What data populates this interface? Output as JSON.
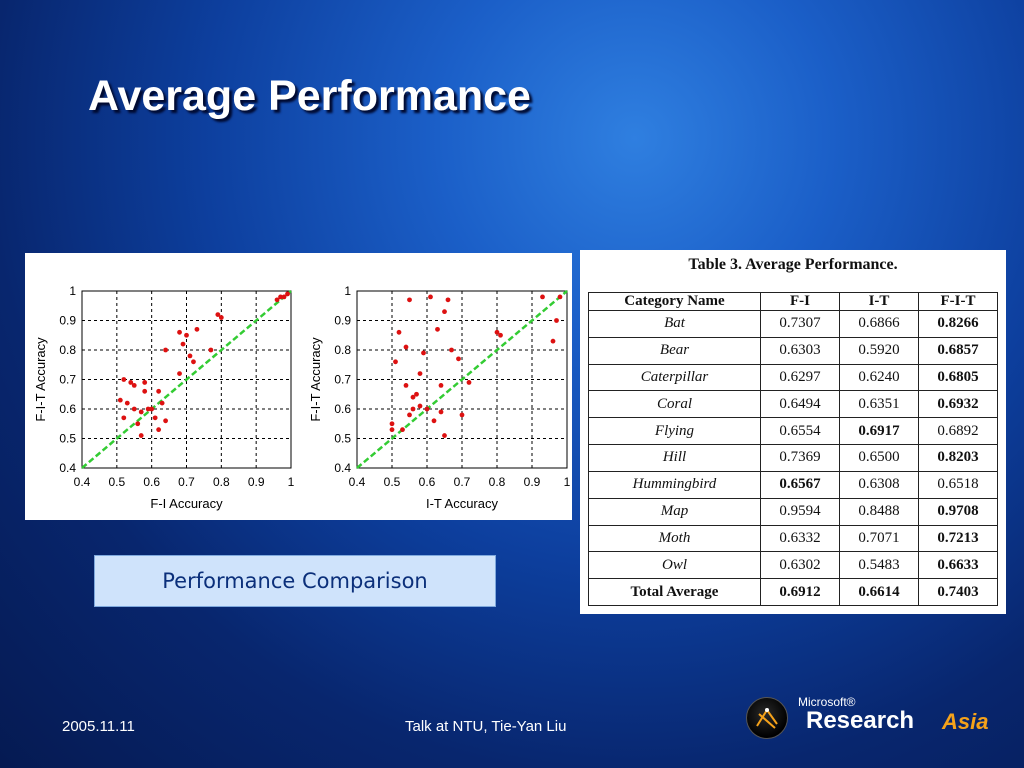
{
  "slide": {
    "title": "Average Performance",
    "caption": "Performance Comparison",
    "footer_date": "2005.11.11",
    "footer_talk": "Talk at NTU, Tie-Yan Liu",
    "logo_microsoft": "Microsoft®",
    "logo_research": "Research",
    "logo_asia": "Asia"
  },
  "chart_data": [
    {
      "type": "scatter",
      "xlabel": "F-I Accuracy",
      "ylabel": "F-I-T Accuracy",
      "xlim": [
        0.4,
        1
      ],
      "ylim": [
        0.4,
        1
      ],
      "xticks": [
        "0.4",
        "0.5",
        "0.6",
        "0.7",
        "0.8",
        "0.9",
        "1"
      ],
      "yticks": [
        "0.4",
        "0.5",
        "0.6",
        "0.7",
        "0.8",
        "0.9",
        "1"
      ],
      "grid": true,
      "diagonal": true,
      "point_color": "#dd1111",
      "diagonal_color": "#33cc33",
      "points": [
        [
          0.51,
          0.63
        ],
        [
          0.52,
          0.7
        ],
        [
          0.52,
          0.57
        ],
        [
          0.53,
          0.62
        ],
        [
          0.54,
          0.69
        ],
        [
          0.55,
          0.68
        ],
        [
          0.55,
          0.6
        ],
        [
          0.56,
          0.55
        ],
        [
          0.57,
          0.59
        ],
        [
          0.57,
          0.51
        ],
        [
          0.58,
          0.66
        ],
        [
          0.58,
          0.69
        ],
        [
          0.59,
          0.6
        ],
        [
          0.6,
          0.6
        ],
        [
          0.61,
          0.57
        ],
        [
          0.62,
          0.53
        ],
        [
          0.62,
          0.66
        ],
        [
          0.63,
          0.62
        ],
        [
          0.64,
          0.56
        ],
        [
          0.64,
          0.8
        ],
        [
          0.68,
          0.72
        ],
        [
          0.68,
          0.86
        ],
        [
          0.69,
          0.82
        ],
        [
          0.7,
          0.85
        ],
        [
          0.71,
          0.78
        ],
        [
          0.72,
          0.76
        ],
        [
          0.73,
          0.87
        ],
        [
          0.77,
          0.8
        ],
        [
          0.79,
          0.92
        ],
        [
          0.8,
          0.91
        ],
        [
          0.96,
          0.97
        ],
        [
          0.97,
          0.98
        ],
        [
          0.98,
          0.98
        ],
        [
          0.99,
          0.99
        ]
      ]
    },
    {
      "type": "scatter",
      "xlabel": "I-T Accuracy",
      "ylabel": "F-I-T Accuracy",
      "xlim": [
        0.4,
        1
      ],
      "ylim": [
        0.4,
        1
      ],
      "xticks": [
        "0.4",
        "0.5",
        "0.6",
        "0.7",
        "0.8",
        "0.9",
        "1"
      ],
      "yticks": [
        "0.4",
        "0.5",
        "0.6",
        "0.7",
        "0.8",
        "0.9",
        "1"
      ],
      "grid": true,
      "diagonal": true,
      "point_color": "#dd1111",
      "diagonal_color": "#33cc33",
      "points": [
        [
          0.5,
          0.53
        ],
        [
          0.5,
          0.55
        ],
        [
          0.51,
          0.76
        ],
        [
          0.52,
          0.86
        ],
        [
          0.53,
          0.53
        ],
        [
          0.54,
          0.68
        ],
        [
          0.54,
          0.81
        ],
        [
          0.55,
          0.97
        ],
        [
          0.55,
          0.58
        ],
        [
          0.56,
          0.64
        ],
        [
          0.56,
          0.6
        ],
        [
          0.57,
          0.65
        ],
        [
          0.58,
          0.72
        ],
        [
          0.58,
          0.61
        ],
        [
          0.59,
          0.79
        ],
        [
          0.6,
          0.6
        ],
        [
          0.61,
          0.98
        ],
        [
          0.62,
          0.56
        ],
        [
          0.63,
          0.87
        ],
        [
          0.64,
          0.59
        ],
        [
          0.64,
          0.68
        ],
        [
          0.65,
          0.93
        ],
        [
          0.65,
          0.51
        ],
        [
          0.66,
          0.97
        ],
        [
          0.67,
          0.8
        ],
        [
          0.69,
          0.77
        ],
        [
          0.7,
          0.58
        ],
        [
          0.72,
          0.69
        ],
        [
          0.8,
          0.86
        ],
        [
          0.81,
          0.85
        ],
        [
          0.93,
          0.98
        ],
        [
          0.96,
          0.83
        ],
        [
          0.97,
          0.9
        ],
        [
          0.98,
          0.98
        ]
      ]
    },
    {
      "type": "table",
      "title": "Table 3. Average Performance.",
      "columns": [
        "Category Name",
        "F-I",
        "I-T",
        "F-I-T"
      ],
      "rows": [
        {
          "name": "Bat",
          "fi": "0.7307",
          "it": "0.6866",
          "fit": "0.8266",
          "best": "fit"
        },
        {
          "name": "Bear",
          "fi": "0.6303",
          "it": "0.5920",
          "fit": "0.6857",
          "best": "fit"
        },
        {
          "name": "Caterpillar",
          "fi": "0.6297",
          "it": "0.6240",
          "fit": "0.6805",
          "best": "fit"
        },
        {
          "name": "Coral",
          "fi": "0.6494",
          "it": "0.6351",
          "fit": "0.6932",
          "best": "fit"
        },
        {
          "name": "Flying",
          "fi": "0.6554",
          "it": "0.6917",
          "fit": "0.6892",
          "best": "it"
        },
        {
          "name": "Hill",
          "fi": "0.7369",
          "it": "0.6500",
          "fit": "0.8203",
          "best": "fit"
        },
        {
          "name": "Hummingbird",
          "fi": "0.6567",
          "it": "0.6308",
          "fit": "0.6518",
          "best": "fi"
        },
        {
          "name": "Map",
          "fi": "0.9594",
          "it": "0.8488",
          "fit": "0.9708",
          "best": "fit"
        },
        {
          "name": "Moth",
          "fi": "0.6332",
          "it": "0.7071",
          "fit": "0.7213",
          "best": "fit"
        },
        {
          "name": "Owl",
          "fi": "0.6302",
          "it": "0.5483",
          "fit": "0.6633",
          "best": "fit"
        },
        {
          "name": "Total Average",
          "fi": "0.6912",
          "it": "0.6614",
          "fit": "0.7403",
          "best": "fit"
        }
      ]
    }
  ]
}
